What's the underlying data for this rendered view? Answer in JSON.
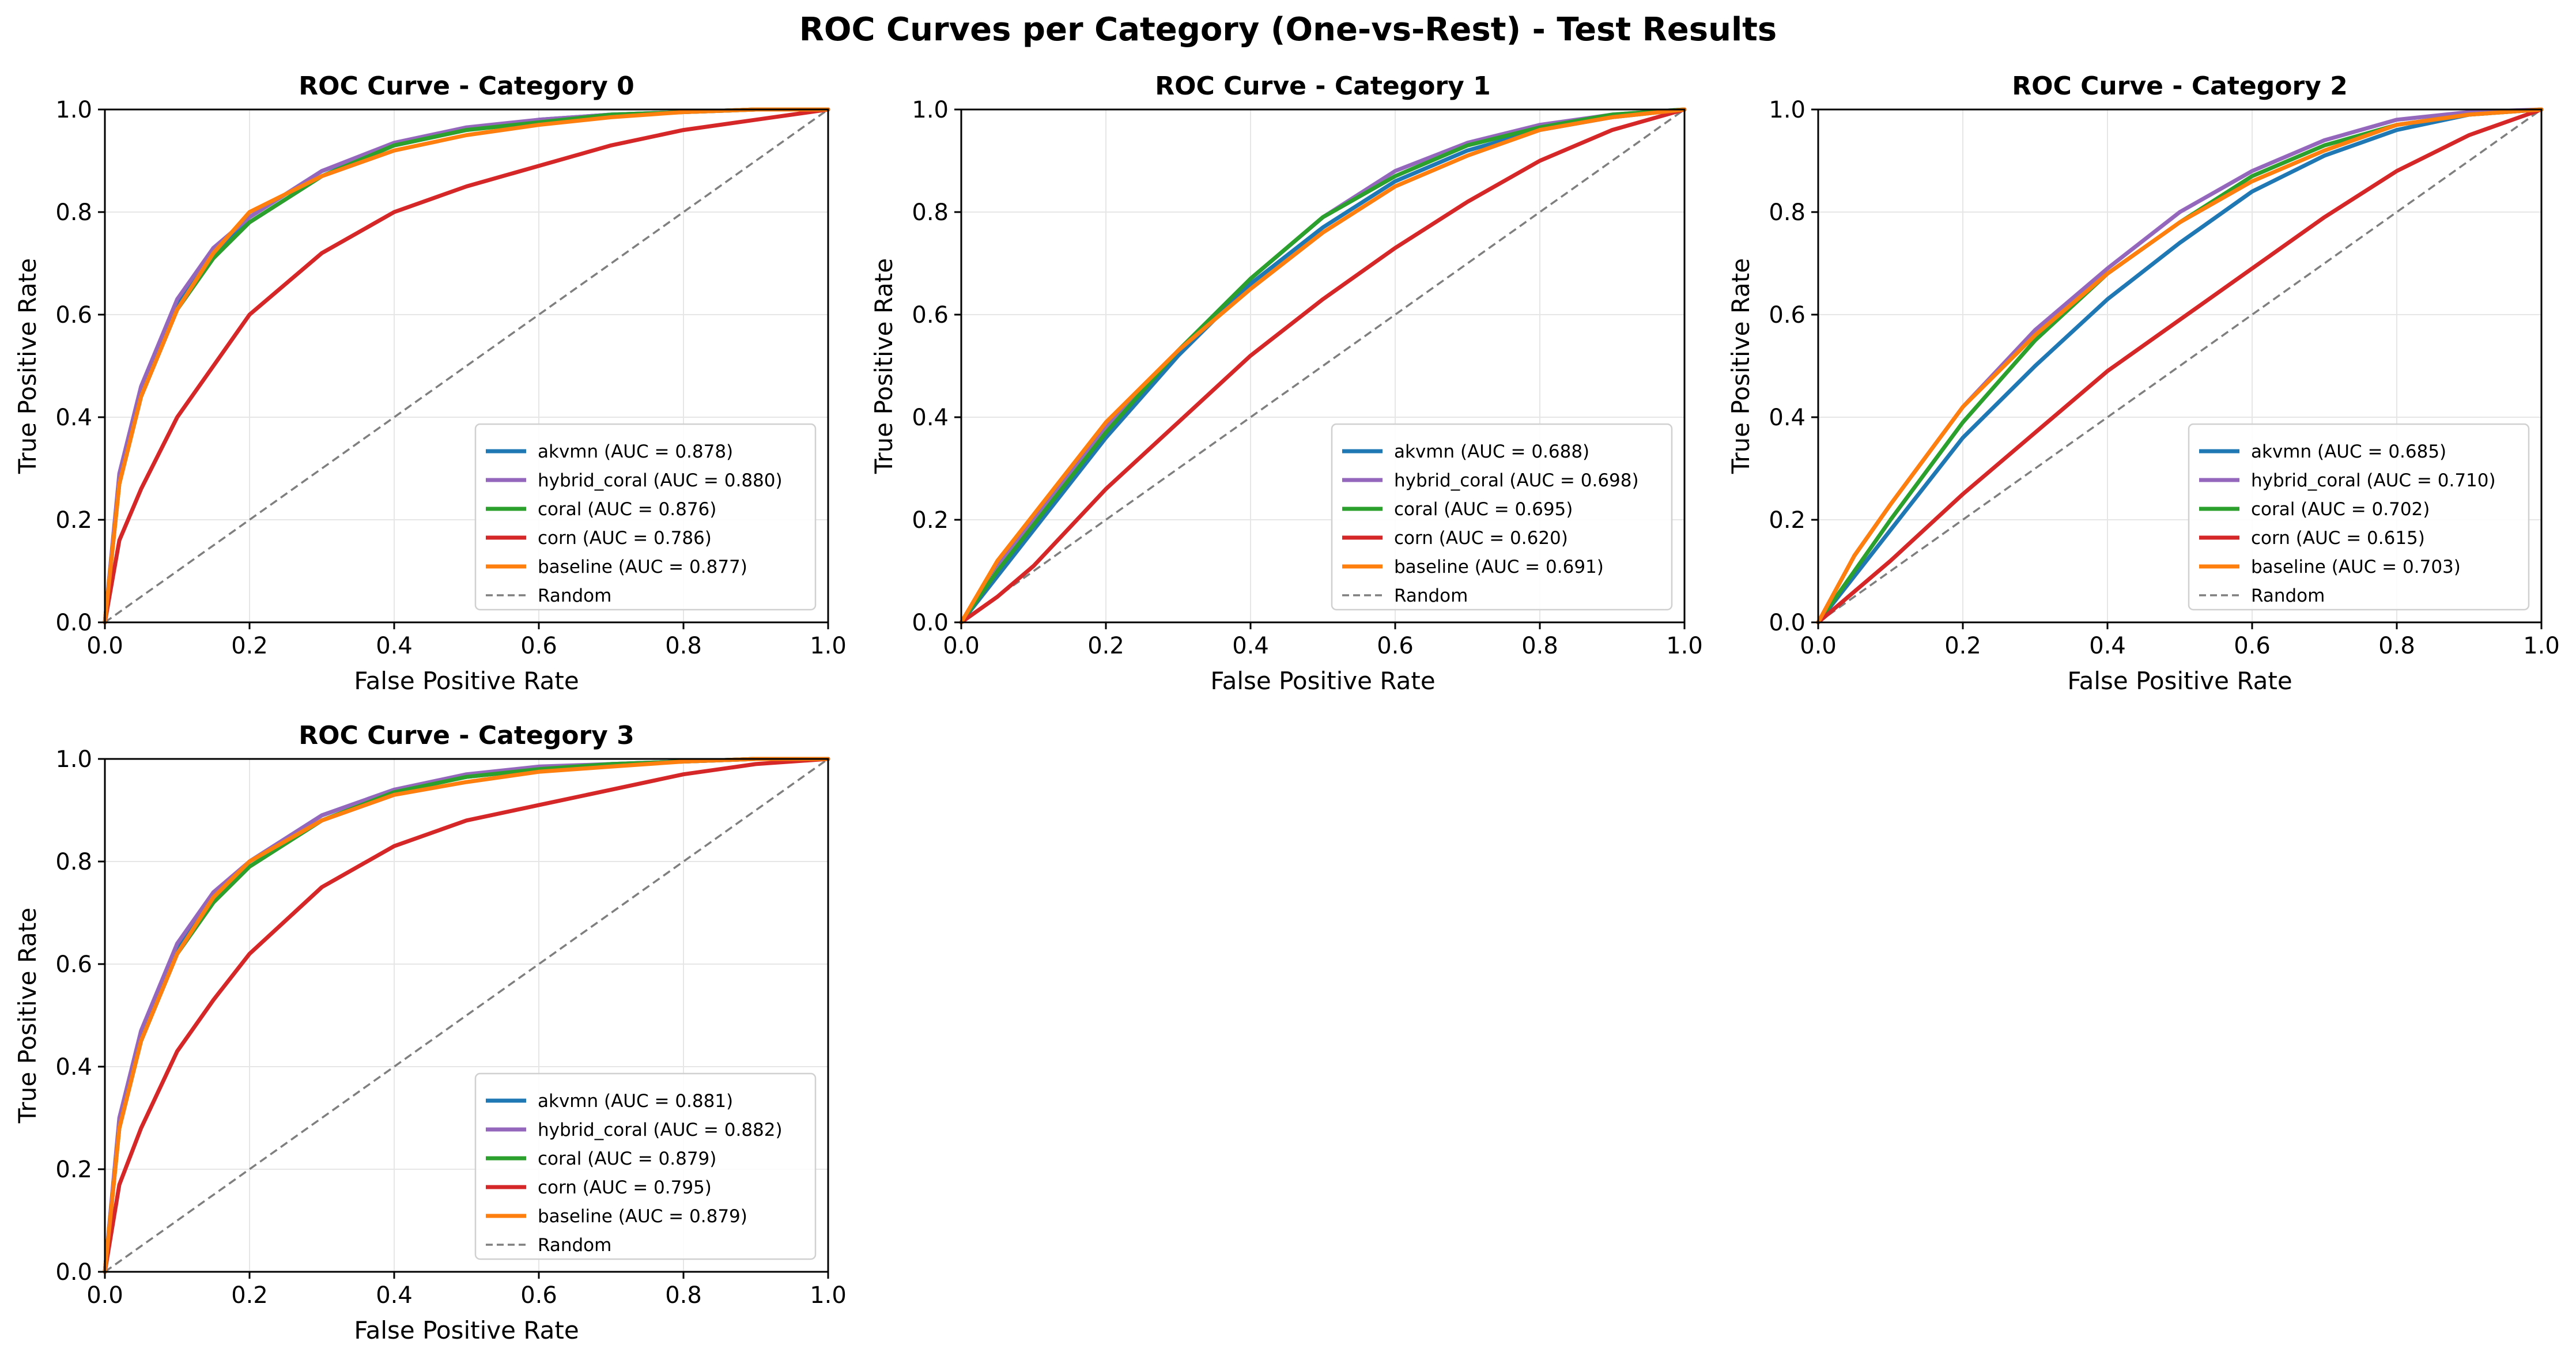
{
  "figure": {
    "title": "ROC Curves per Category (One-vs-Rest) - Test Results"
  },
  "style": {
    "colors": {
      "akvmn": "#1f77b4",
      "hybrid_coral": "#9467bd",
      "coral": "#2ca02c",
      "corn": "#d62728",
      "baseline": "#ff7f0e",
      "random": "#7f7f7f",
      "grid": "#e6e6e6",
      "axes": "#000000"
    },
    "series_order": [
      "akvmn",
      "hybrid_coral",
      "coral",
      "corn",
      "baseline"
    ],
    "x_ticks": [
      "0.0",
      "0.2",
      "0.4",
      "0.6",
      "0.8",
      "1.0"
    ],
    "y_ticks": [
      "0.0",
      "0.2",
      "0.4",
      "0.6",
      "0.8",
      "1.0"
    ],
    "random_label": "Random"
  },
  "chart_data": [
    {
      "type": "line",
      "title": "ROC Curve - Category 0",
      "xlabel": "False Positive Rate",
      "ylabel": "True Positive Rate",
      "xlim": [
        0,
        1
      ],
      "ylim": [
        0,
        1
      ],
      "grid": true,
      "legend_position": "lower-right",
      "x": [
        0,
        0.02,
        0.05,
        0.1,
        0.15,
        0.2,
        0.3,
        0.4,
        0.5,
        0.6,
        0.7,
        0.8,
        0.9,
        1.0
      ],
      "series": [
        {
          "name": "akvmn",
          "legend": "akvmn (AUC = 0.878)",
          "y": [
            0,
            0.28,
            0.45,
            0.62,
            0.72,
            0.79,
            0.88,
            0.93,
            0.96,
            0.98,
            0.99,
            0.995,
            1.0,
            1.0
          ]
        },
        {
          "name": "hybrid_coral",
          "legend": "hybrid_coral (AUC = 0.880)",
          "y": [
            0,
            0.29,
            0.46,
            0.63,
            0.73,
            0.79,
            0.88,
            0.935,
            0.965,
            0.98,
            0.99,
            0.995,
            1.0,
            1.0
          ]
        },
        {
          "name": "coral",
          "legend": "coral (AUC = 0.876)",
          "y": [
            0,
            0.27,
            0.44,
            0.61,
            0.71,
            0.78,
            0.87,
            0.93,
            0.96,
            0.975,
            0.99,
            0.995,
            1.0,
            1.0
          ]
        },
        {
          "name": "corn",
          "legend": "corn (AUC = 0.786)",
          "y": [
            0,
            0.16,
            0.26,
            0.4,
            0.5,
            0.6,
            0.72,
            0.8,
            0.85,
            0.89,
            0.93,
            0.96,
            0.98,
            1.0
          ]
        },
        {
          "name": "baseline",
          "legend": "baseline (AUC = 0.877)",
          "y": [
            0,
            0.27,
            0.44,
            0.61,
            0.72,
            0.8,
            0.87,
            0.92,
            0.95,
            0.97,
            0.985,
            0.995,
            1.0,
            1.0
          ]
        }
      ]
    },
    {
      "type": "line",
      "title": "ROC Curve - Category 1",
      "xlabel": "False Positive Rate",
      "ylabel": "True Positive Rate",
      "xlim": [
        0,
        1
      ],
      "ylim": [
        0,
        1
      ],
      "grid": true,
      "legend_position": "lower-right",
      "x": [
        0,
        0.05,
        0.1,
        0.2,
        0.3,
        0.4,
        0.5,
        0.6,
        0.7,
        0.8,
        0.9,
        1.0
      ],
      "series": [
        {
          "name": "akvmn",
          "legend": "akvmn (AUC = 0.688)",
          "y": [
            0,
            0.09,
            0.18,
            0.36,
            0.52,
            0.66,
            0.77,
            0.86,
            0.92,
            0.96,
            0.985,
            1.0
          ]
        },
        {
          "name": "hybrid_coral",
          "legend": "hybrid_coral (AUC = 0.698)",
          "y": [
            0,
            0.11,
            0.2,
            0.38,
            0.53,
            0.67,
            0.79,
            0.88,
            0.935,
            0.97,
            0.99,
            1.0
          ]
        },
        {
          "name": "coral",
          "legend": "coral (AUC = 0.695)",
          "y": [
            0,
            0.1,
            0.19,
            0.37,
            0.53,
            0.67,
            0.79,
            0.87,
            0.93,
            0.965,
            0.99,
            1.0
          ]
        },
        {
          "name": "corn",
          "legend": "corn (AUC = 0.620)",
          "y": [
            0,
            0.05,
            0.11,
            0.26,
            0.39,
            0.52,
            0.63,
            0.73,
            0.82,
            0.9,
            0.96,
            1.0
          ]
        },
        {
          "name": "baseline",
          "legend": "baseline (AUC = 0.691)",
          "y": [
            0,
            0.12,
            0.21,
            0.39,
            0.53,
            0.65,
            0.76,
            0.85,
            0.91,
            0.96,
            0.985,
            1.0
          ]
        }
      ]
    },
    {
      "type": "line",
      "title": "ROC Curve - Category 2",
      "xlabel": "False Positive Rate",
      "ylabel": "True Positive Rate",
      "xlim": [
        0,
        1
      ],
      "ylim": [
        0,
        1
      ],
      "grid": true,
      "legend_position": "lower-right",
      "x": [
        0,
        0.05,
        0.1,
        0.2,
        0.3,
        0.4,
        0.5,
        0.6,
        0.7,
        0.8,
        0.9,
        1.0
      ],
      "series": [
        {
          "name": "akvmn",
          "legend": "akvmn (AUC = 0.685)",
          "y": [
            0,
            0.09,
            0.18,
            0.36,
            0.5,
            0.63,
            0.74,
            0.84,
            0.91,
            0.96,
            0.99,
            1.0
          ]
        },
        {
          "name": "hybrid_coral",
          "legend": "hybrid_coral (AUC = 0.710)",
          "y": [
            0,
            0.13,
            0.23,
            0.42,
            0.57,
            0.69,
            0.8,
            0.88,
            0.94,
            0.98,
            0.995,
            1.0
          ]
        },
        {
          "name": "coral",
          "legend": "coral (AUC = 0.702)",
          "y": [
            0,
            0.1,
            0.2,
            0.39,
            0.55,
            0.68,
            0.78,
            0.87,
            0.93,
            0.97,
            0.99,
            1.0
          ]
        },
        {
          "name": "corn",
          "legend": "corn (AUC = 0.615)",
          "y": [
            0,
            0.06,
            0.12,
            0.25,
            0.37,
            0.49,
            0.59,
            0.69,
            0.79,
            0.88,
            0.95,
            1.0
          ]
        },
        {
          "name": "baseline",
          "legend": "baseline (AUC = 0.703)",
          "y": [
            0,
            0.13,
            0.23,
            0.42,
            0.56,
            0.68,
            0.78,
            0.86,
            0.92,
            0.97,
            0.99,
            1.0
          ]
        }
      ]
    },
    {
      "type": "line",
      "title": "ROC Curve - Category 3",
      "xlabel": "False Positive Rate",
      "ylabel": "True Positive Rate",
      "xlim": [
        0,
        1
      ],
      "ylim": [
        0,
        1
      ],
      "grid": true,
      "legend_position": "lower-right",
      "x": [
        0,
        0.02,
        0.05,
        0.1,
        0.15,
        0.2,
        0.3,
        0.4,
        0.5,
        0.6,
        0.7,
        0.8,
        0.9,
        1.0
      ],
      "series": [
        {
          "name": "akvmn",
          "legend": "akvmn (AUC = 0.881)",
          "y": [
            0,
            0.29,
            0.46,
            0.63,
            0.73,
            0.8,
            0.89,
            0.94,
            0.965,
            0.98,
            0.99,
            0.995,
            1.0,
            1.0
          ]
        },
        {
          "name": "hybrid_coral",
          "legend": "hybrid_coral (AUC = 0.882)",
          "y": [
            0,
            0.3,
            0.47,
            0.64,
            0.74,
            0.8,
            0.89,
            0.94,
            0.97,
            0.985,
            0.99,
            0.995,
            1.0,
            1.0
          ]
        },
        {
          "name": "coral",
          "legend": "coral (AUC = 0.879)",
          "y": [
            0,
            0.28,
            0.45,
            0.62,
            0.72,
            0.79,
            0.88,
            0.935,
            0.965,
            0.98,
            0.99,
            0.995,
            1.0,
            1.0
          ]
        },
        {
          "name": "corn",
          "legend": "corn (AUC = 0.795)",
          "y": [
            0,
            0.17,
            0.28,
            0.43,
            0.53,
            0.62,
            0.75,
            0.83,
            0.88,
            0.91,
            0.94,
            0.97,
            0.99,
            1.0
          ]
        },
        {
          "name": "baseline",
          "legend": "baseline (AUC = 0.879)",
          "y": [
            0,
            0.28,
            0.45,
            0.62,
            0.73,
            0.8,
            0.88,
            0.93,
            0.955,
            0.975,
            0.985,
            0.995,
            1.0,
            1.0
          ]
        }
      ]
    }
  ]
}
